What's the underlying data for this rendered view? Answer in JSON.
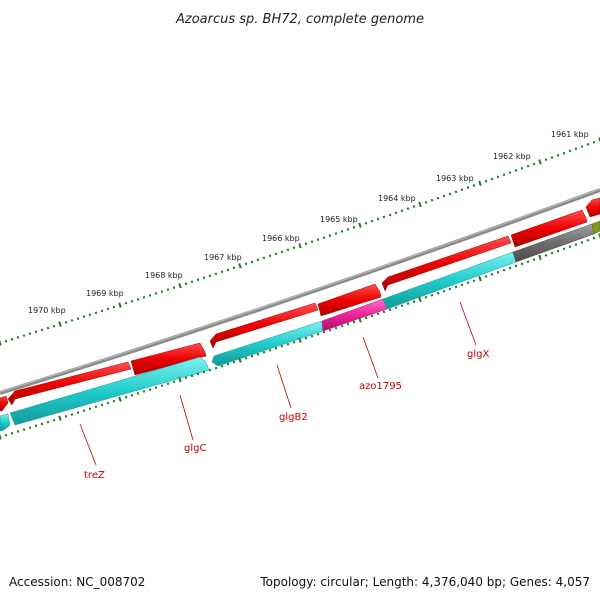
{
  "title": "Azoarcus sp. BH72, complete genome",
  "accession": "Accession: NC_008702",
  "summary": "Topology: circular; Length: 4,376,040 bp; Genes: 4,057",
  "colors": {
    "backbone": "#8a8a8a",
    "forward_gene": "#ee0000",
    "reverse_gene": "#22cccc",
    "highlight_gene": "#ee2299",
    "gray_gene": "#6e6e6e",
    "olive_gene": "#7a9a20",
    "tick": "#1d7a1d",
    "label": "#c00000"
  },
  "kbp_labels": [
    "1970 kbp",
    "1969 kbp",
    "1968 kbp",
    "1967 kbp",
    "1966 kbp",
    "1965 kbp",
    "1964 kbp",
    "1963 kbp",
    "1962 kbp",
    "1961 kbp"
  ],
  "gene_labels": [
    "treZ",
    "glgC",
    "glgB2",
    "azo1795",
    "glgX"
  ]
}
